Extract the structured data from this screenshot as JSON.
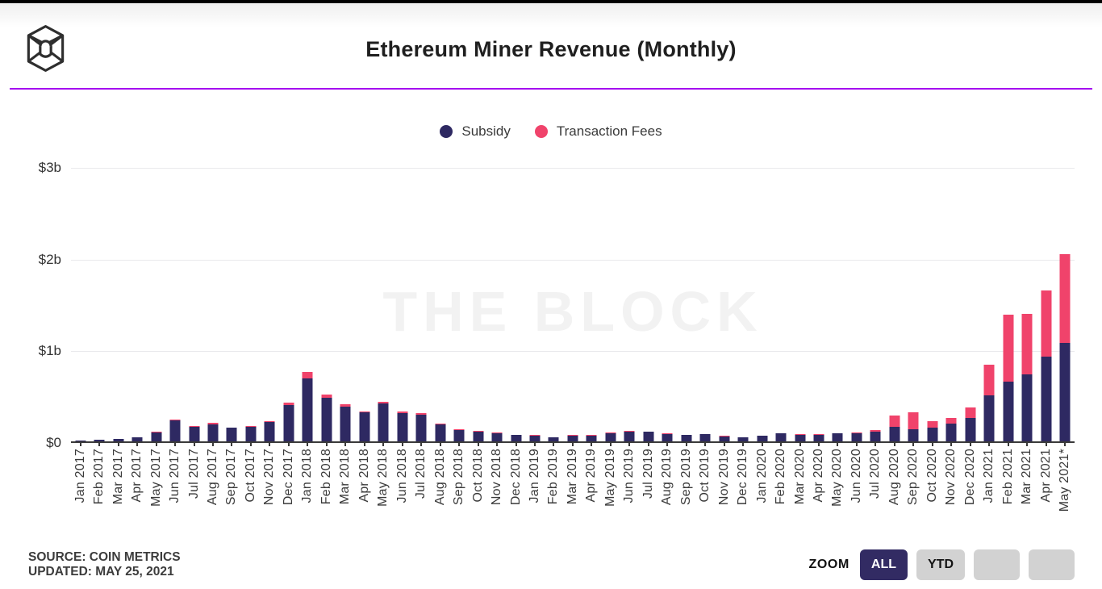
{
  "watermark": "THE BLOCK",
  "colors": {
    "subsidy": "#2e2962",
    "fees": "#f0436b",
    "accent_rule": "#a400f0",
    "active_button_bg": "#322b63",
    "axis_line": "#3a3a3a",
    "gridline": "#e9e9ec"
  },
  "footer": {
    "source_line1": "SOURCE: COIN METRICS",
    "source_line2": "UPDATED: MAY 25, 2021"
  },
  "zoom_controls": {
    "label": "ZOOM",
    "buttons": [
      {
        "label": "ALL",
        "active": true
      },
      {
        "label": "YTD",
        "active": false
      },
      {
        "label": "",
        "active": false
      },
      {
        "label": "",
        "active": false
      }
    ]
  },
  "chart_data": {
    "type": "bar",
    "stacked": true,
    "title": "Ethereum Miner Revenue (Monthly)",
    "unit": "USD millions",
    "ylim": [
      0,
      3000
    ],
    "yticks_top_down": [
      "$3b",
      "$2b",
      "$1b",
      "$0"
    ],
    "grid": true,
    "legend_position": "top-center",
    "categories": [
      "Jan 2017",
      "Feb 2017",
      "Mar 2017",
      "Apr 2017",
      "May 2017",
      "Jun 2017",
      "Jul 2017",
      "Aug 2017",
      "Sep 2017",
      "Oct 2017",
      "Nov 2017",
      "Dec 2017",
      "Jan 2018",
      "Feb 2018",
      "Mar 2018",
      "Apr 2018",
      "May 2018",
      "Jun 2018",
      "Jul 2018",
      "Aug 2018",
      "Sep 2018",
      "Oct 2018",
      "Nov 2018",
      "Dec 2018",
      "Jan 2019",
      "Feb 2019",
      "Mar 2019",
      "Apr 2019",
      "May 2019",
      "Jun 2019",
      "Jul 2019",
      "Aug 2019",
      "Sep 2019",
      "Oct 2019",
      "Nov 2019",
      "Dec 2019",
      "Jan 2020",
      "Feb 2020",
      "Mar 2020",
      "Apr 2020",
      "May 2020",
      "Jun 2020",
      "Jul 2020",
      "Aug 2020",
      "Sep 2020",
      "Oct 2020",
      "Nov 2020",
      "Dec 2020",
      "Jan 2021",
      "Feb 2021",
      "Mar 2021",
      "Apr 2021",
      "May 2021*"
    ],
    "series": [
      {
        "name": "Subsidy",
        "color": "#2e2962",
        "values": [
          12,
          14,
          27,
          44,
          98,
          230,
          160,
          188,
          148,
          160,
          212,
          400,
          690,
          478,
          382,
          318,
          412,
          310,
          288,
          188,
          126,
          110,
          85,
          70,
          64,
          44,
          64,
          64,
          92,
          106,
          104,
          76,
          71,
          77,
          55,
          40,
          63,
          85,
          72,
          74,
          84,
          88,
          110,
          160,
          133,
          154,
          193,
          252,
          505,
          647,
          733,
          920,
          1070
        ]
      },
      {
        "name": "Transaction Fees",
        "color": "#f0436b",
        "values": [
          1,
          1,
          1,
          2,
          4,
          8,
          8,
          15,
          5,
          5,
          6,
          22,
          65,
          32,
          22,
          12,
          20,
          18,
          21,
          6,
          4,
          3,
          8,
          3,
          3,
          3,
          3,
          4,
          4,
          5,
          5,
          12,
          3,
          3,
          3,
          2,
          3,
          4,
          5,
          3,
          6,
          7,
          16,
          119,
          185,
          62,
          65,
          119,
          332,
          733,
          653,
          722,
          970
        ]
      }
    ]
  }
}
